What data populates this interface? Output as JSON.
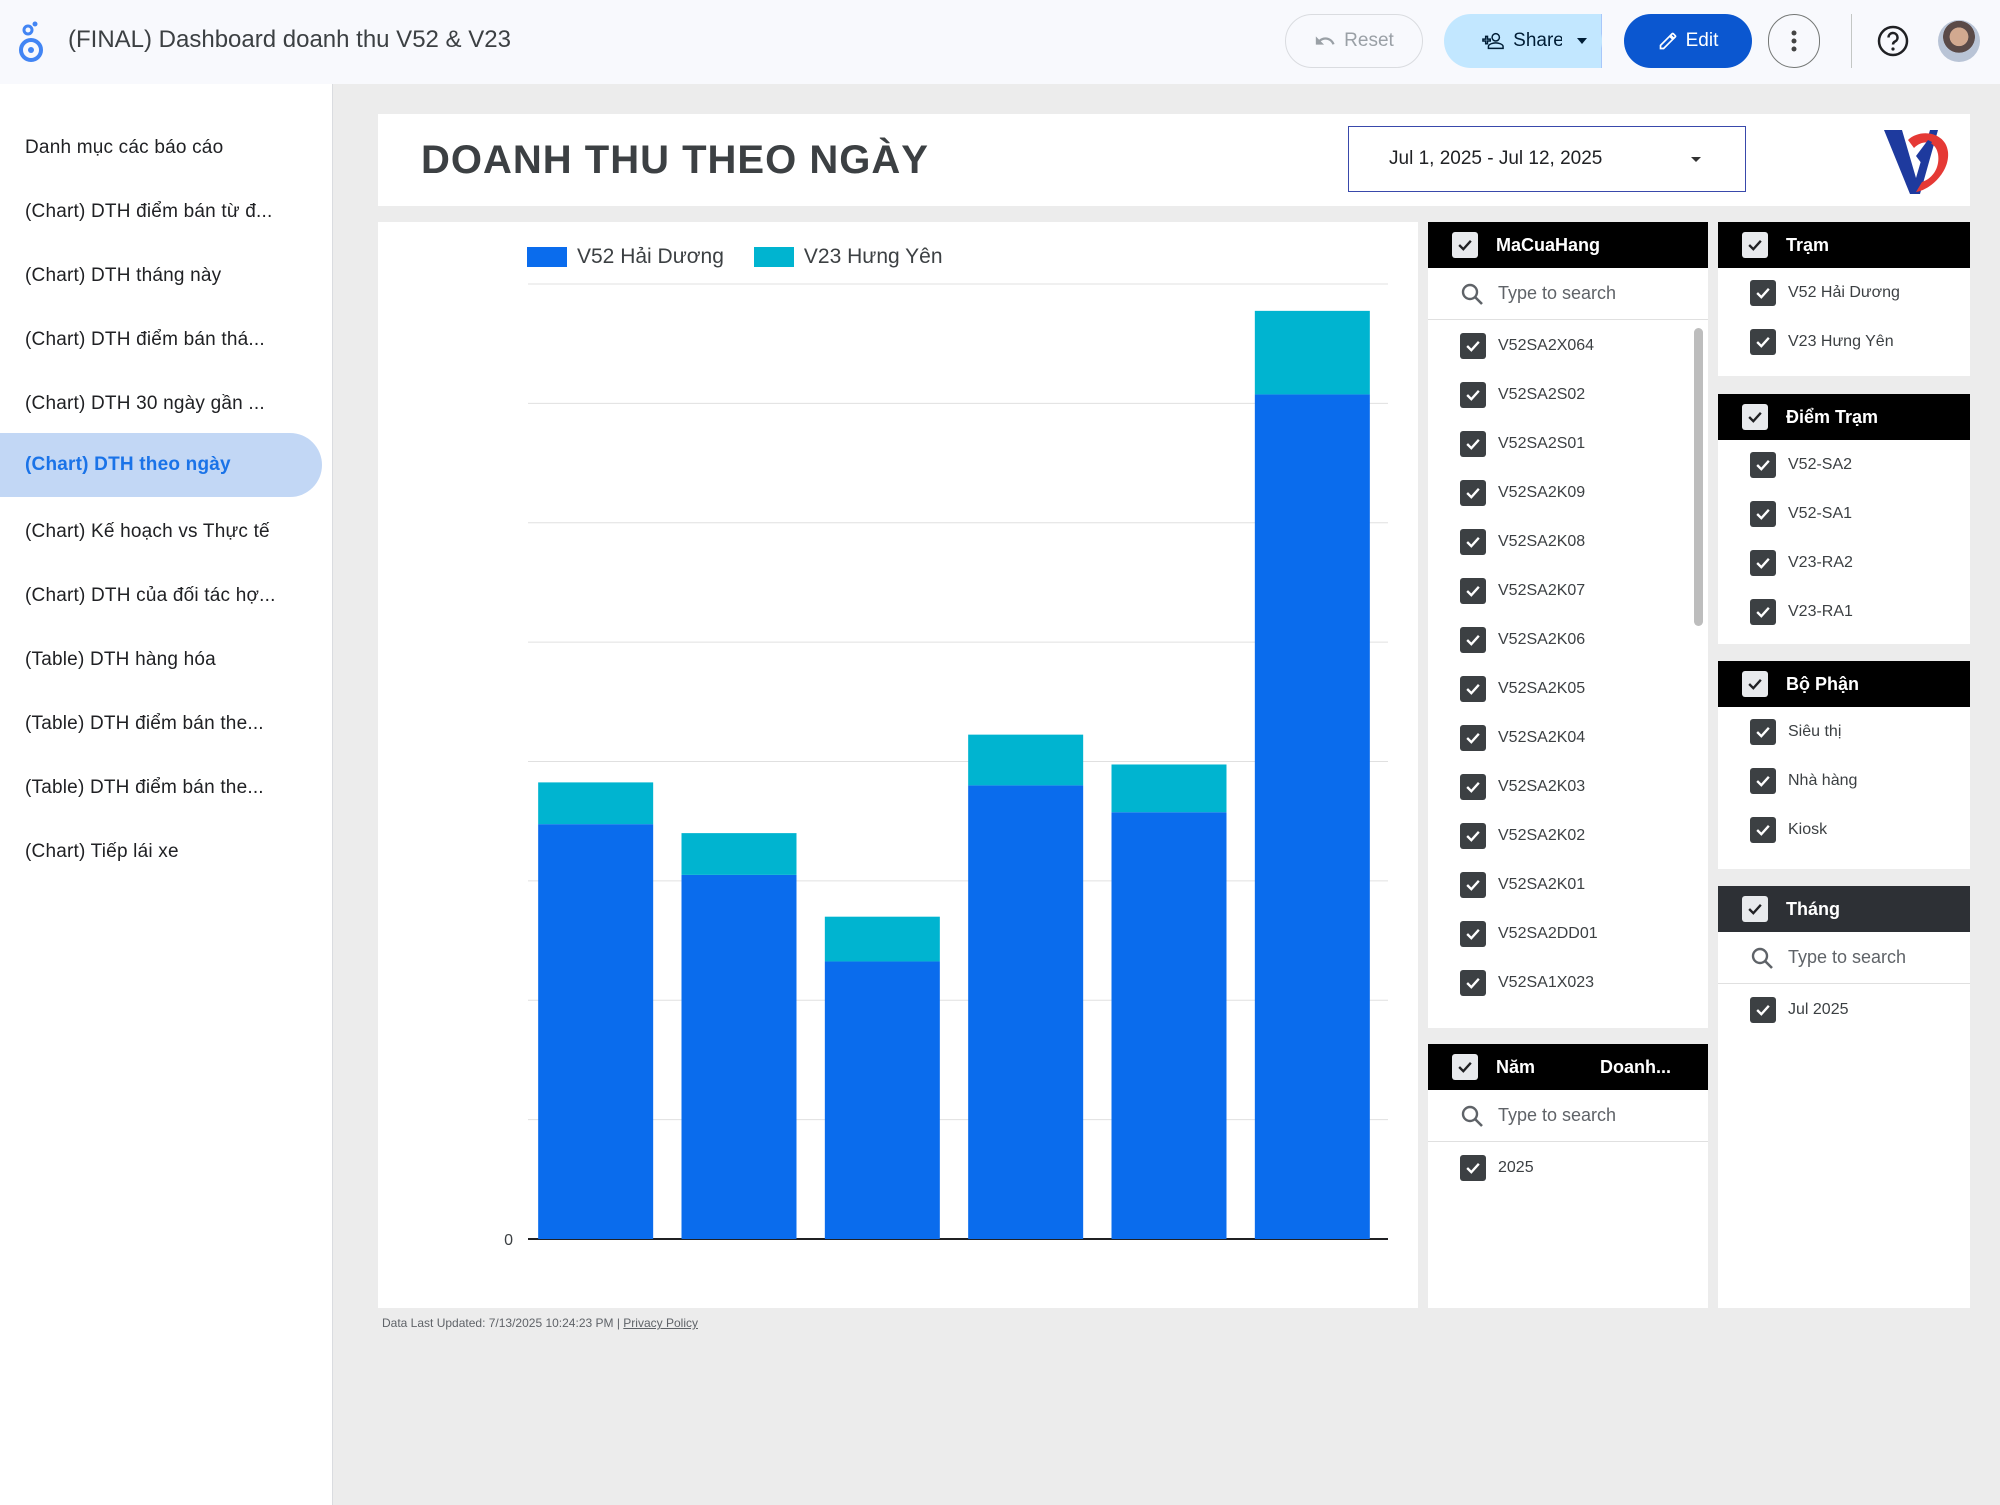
{
  "app": {
    "title": "(FINAL) Dashboard doanh thu V52 & V23"
  },
  "toolbar": {
    "reset_label": "Reset",
    "share_label": "Share",
    "edit_label": "Edit"
  },
  "sidebar": {
    "items": [
      {
        "label": "Danh mục các báo cáo",
        "active": false
      },
      {
        "label": "(Chart) DTH điểm bán từ đ...",
        "active": false
      },
      {
        "label": "(Chart) DTH tháng này",
        "active": false
      },
      {
        "label": "(Chart) DTH điểm bán thá...",
        "active": false
      },
      {
        "label": "(Chart) DTH 30 ngày gần ...",
        "active": false
      },
      {
        "label": "(Chart) DTH theo ngày",
        "active": true
      },
      {
        "label": "(Chart) Kế hoạch vs Thực tế",
        "active": false
      },
      {
        "label": "(Chart) DTH của đối tác hợ...",
        "active": false
      },
      {
        "label": "(Table) DTH hàng hóa",
        "active": false
      },
      {
        "label": "(Table) DTH điểm bán the...",
        "active": false
      },
      {
        "label": "(Table) DTH điểm bán the...",
        "active": false
      },
      {
        "label": "(Chart) Tiếp lái xe",
        "active": false
      }
    ]
  },
  "header": {
    "title": "DOANH THU THEO NGÀY",
    "date_range": "Jul 1, 2025 - Jul 12, 2025"
  },
  "colors": {
    "v52": "#0a6ced",
    "v23": "#00b4d0",
    "accent": "#1a73e8"
  },
  "chart_data": {
    "type": "bar",
    "stacked": true,
    "categories": [
      "",
      "",
      "",
      "",
      "",
      ""
    ],
    "series": [
      {
        "name": "V52 Hải Dương",
        "values": [
          6.95,
          6.1,
          4.65,
          7.6,
          7.15,
          14.15
        ]
      },
      {
        "name": "V23 Hưng Yên",
        "values": [
          0.7,
          0.7,
          0.75,
          0.85,
          0.8,
          1.4
        ]
      }
    ],
    "y_tick_labels": [
      "0"
    ],
    "ylim": [
      0,
      16
    ],
    "grid": true,
    "legend": "top-left",
    "note": "axis tick labels and data labels are pixelated/obscured in the original"
  },
  "filters": {
    "macuahang": {
      "title": "MaCuaHang",
      "search_placeholder": "Type to search",
      "items": [
        "V52SA2X064",
        "V52SA2S02",
        "V52SA2S01",
        "V52SA2K09",
        "V52SA2K08",
        "V52SA2K07",
        "V52SA2K06",
        "V52SA2K05",
        "V52SA2K04",
        "V52SA2K03",
        "V52SA2K02",
        "V52SA2K01",
        "V52SA2DD01",
        "V52SA1X023"
      ]
    },
    "nam": {
      "title": "Năm",
      "title2": "Doanh...",
      "search_placeholder": "Type to search",
      "items": [
        "2025"
      ]
    },
    "tram": {
      "title": "Trạm",
      "items": [
        "V52 Hải Dương",
        "V23 Hưng Yên"
      ]
    },
    "diemtram": {
      "title": "Điểm Trạm",
      "items": [
        "V52-SA2",
        "V52-SA1",
        "V23-RA2",
        "V23-RA1"
      ]
    },
    "bophan": {
      "title": "Bộ Phận",
      "items": [
        "Siêu thị",
        "Nhà hàng",
        "Kiosk"
      ]
    },
    "thang": {
      "title": "Tháng",
      "search_placeholder": "Type to search",
      "items": [
        "Jul 2025"
      ]
    }
  },
  "footer": {
    "updated": "Data Last Updated: 7/13/2025 10:24:23 PM",
    "privacy": "Privacy Policy"
  }
}
